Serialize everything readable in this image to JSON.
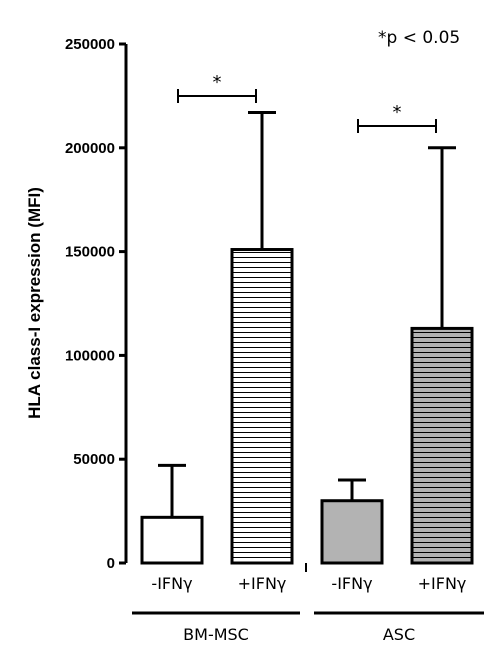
{
  "chart_data": {
    "type": "bar",
    "ylabel": "HLA class-I expression (MFI)",
    "xlabel": "",
    "ylim": [
      0,
      250000
    ],
    "yticks": [
      0,
      50000,
      100000,
      150000,
      200000,
      250000
    ],
    "categories": [
      "-IFNγ",
      "+IFNγ",
      "-IFNγ",
      "+IFNγ"
    ],
    "groups": [
      {
        "label": "BM-MSC",
        "categories": [
          0,
          1
        ]
      },
      {
        "label": "ASC",
        "categories": [
          2,
          3
        ]
      }
    ],
    "values": [
      22000,
      151000,
      30000,
      113000
    ],
    "error_upper": [
      47000,
      217000,
      40000,
      200000
    ],
    "bar_styles": [
      {
        "fill": "#ffffff",
        "pattern": "none"
      },
      {
        "fill": "#ffffff",
        "pattern": "horizontal-stripes"
      },
      {
        "fill": "#b3b3b3",
        "pattern": "none"
      },
      {
        "fill": "#b3b3b3",
        "pattern": "horizontal-stripes"
      }
    ],
    "significance": [
      {
        "between": [
          0,
          1
        ],
        "label": "*"
      },
      {
        "between": [
          2,
          3
        ],
        "label": "*"
      }
    ],
    "annotation": "*p < 0.05",
    "grid": false,
    "legend": "none"
  }
}
